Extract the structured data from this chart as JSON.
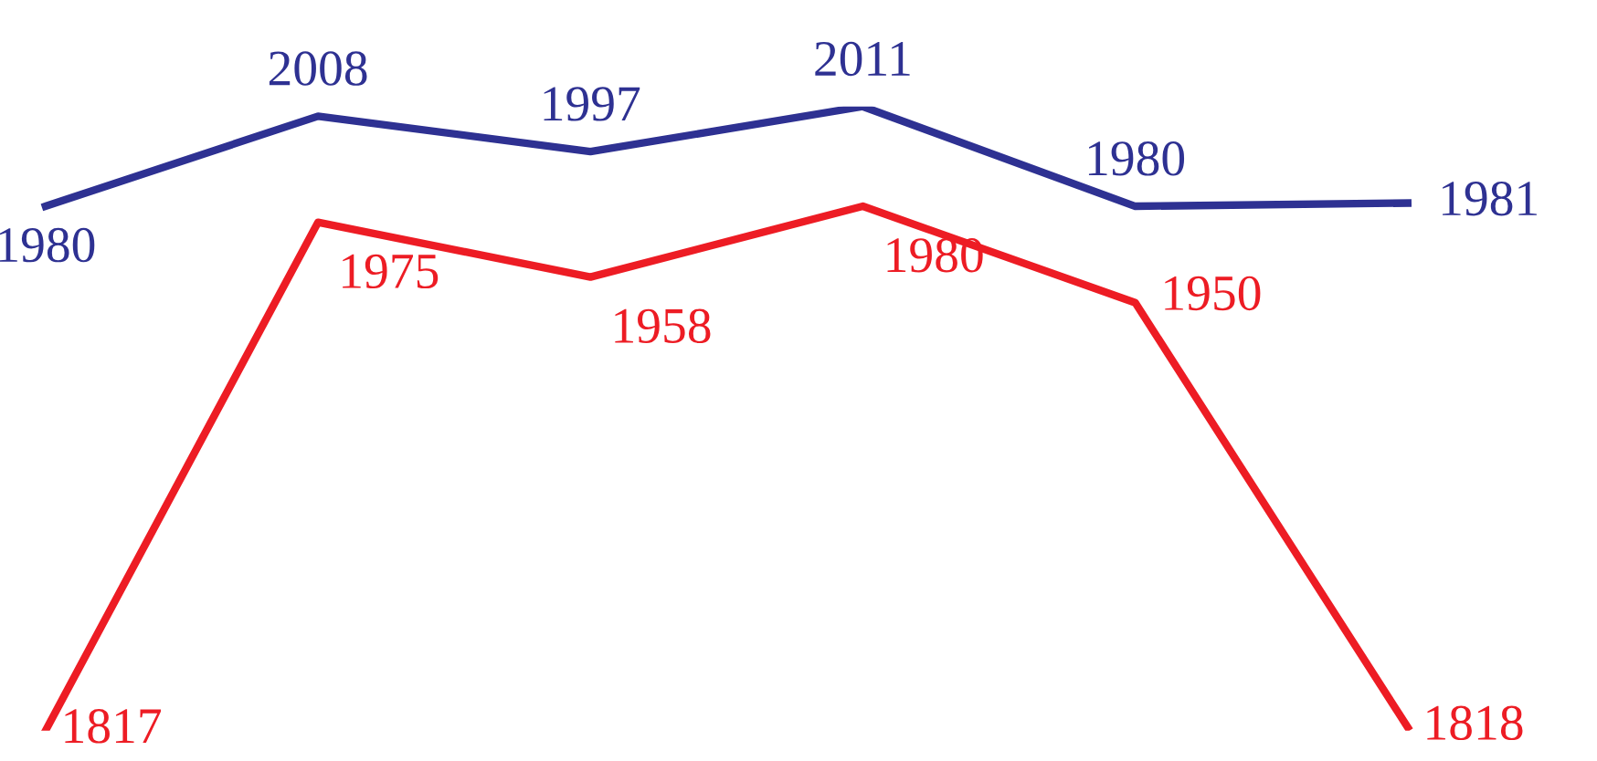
{
  "chart_data": {
    "type": "line",
    "categories": [
      null,
      null,
      null,
      null,
      null,
      null
    ],
    "series": [
      {
        "color": "#2e3192",
        "values": [
          1980,
          2008,
          1997,
          2011,
          1980,
          1981
        ]
      },
      {
        "color": "#ed1c24",
        "values": [
          1817,
          1975,
          1958,
          1980,
          1950,
          1818
        ]
      }
    ],
    "data_labels": true,
    "marker": "none",
    "line_style": "solid",
    "grid": false,
    "legend": false
  }
}
